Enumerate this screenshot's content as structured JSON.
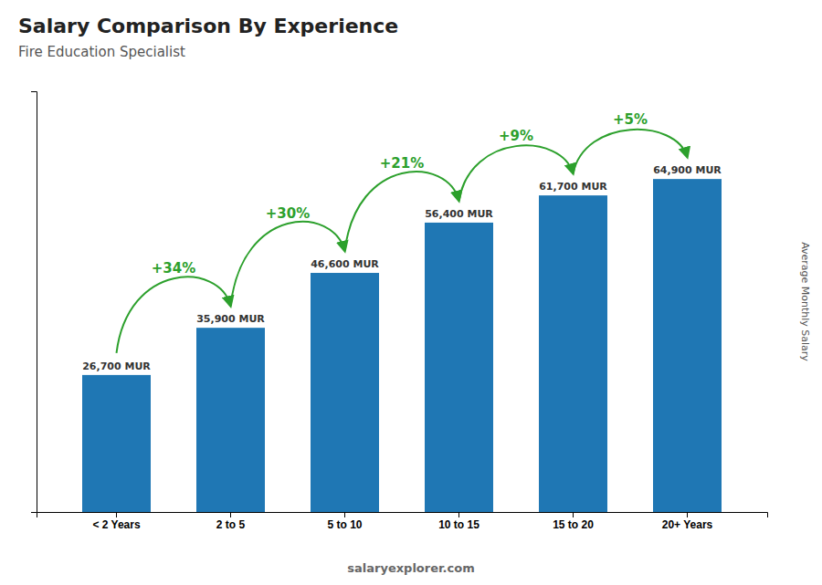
{
  "chart_data": {
    "type": "bar",
    "title": "Salary Comparison By Experience",
    "subtitle": "Fire Education Specialist",
    "ylabel": "Average Monthly Salary",
    "categories": [
      "< 2 Years",
      "2 to 5",
      "5 to 10",
      "10 to 15",
      "15 to 20",
      "20+ Years"
    ],
    "values": [
      26700,
      35900,
      46600,
      56400,
      61700,
      64900
    ],
    "value_labels": [
      "26,700 MUR",
      "35,900 MUR",
      "46,600 MUR",
      "56,400 MUR",
      "61,700 MUR",
      "64,900 MUR"
    ],
    "data_labels": true,
    "ylim": [
      0,
      82000
    ],
    "yticks": [],
    "tick_labels": "x",
    "annotations": [
      {
        "text": "+34%",
        "from": "< 2 Years",
        "to": "2 to 5"
      },
      {
        "text": "+30%",
        "from": "2 to 5",
        "to": "5 to 10"
      },
      {
        "text": "+21%",
        "from": "5 to 10",
        "to": "10 to 15"
      },
      {
        "text": "+9%",
        "from": "10 to 15",
        "to": "15 to 20"
      },
      {
        "text": "+5%",
        "from": "15 to 20",
        "to": "20+ Years"
      }
    ],
    "footer": "salaryexplorer.com"
  }
}
